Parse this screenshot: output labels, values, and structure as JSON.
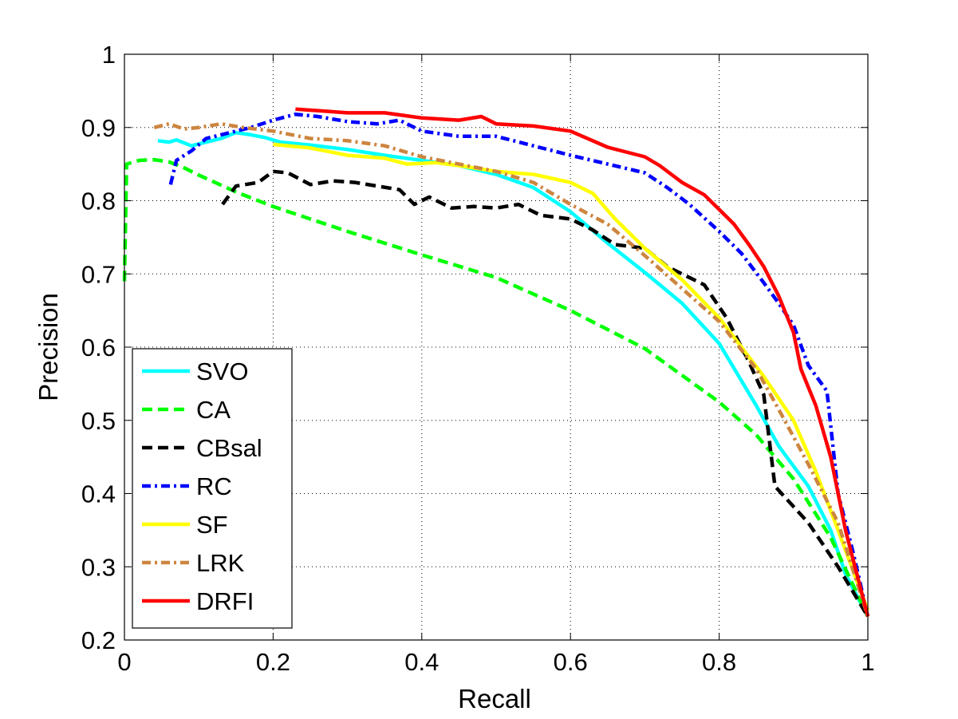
{
  "chart_data": {
    "type": "line",
    "title": "",
    "xlabel": "Recall",
    "ylabel": "Precision",
    "xlim": [
      0,
      1
    ],
    "ylim": [
      0.2,
      1
    ],
    "grid": true,
    "legend_position": "bottom-left",
    "x_ticks": [
      "0",
      "0.2",
      "0.4",
      "0.6",
      "0.8",
      "1"
    ],
    "y_ticks": [
      "0.2",
      "0.3",
      "0.4",
      "0.5",
      "0.6",
      "0.7",
      "0.8",
      "0.9",
      "1"
    ],
    "series": [
      {
        "name": "SVO",
        "color": "#00ffff",
        "style": "solid",
        "points": [
          [
            0.045,
            0.882
          ],
          [
            0.06,
            0.88
          ],
          [
            0.07,
            0.883
          ],
          [
            0.09,
            0.875
          ],
          [
            0.11,
            0.88
          ],
          [
            0.13,
            0.885
          ],
          [
            0.15,
            0.893
          ],
          [
            0.17,
            0.89
          ],
          [
            0.19,
            0.886
          ],
          [
            0.21,
            0.88
          ],
          [
            0.25,
            0.876
          ],
          [
            0.3,
            0.87
          ],
          [
            0.35,
            0.862
          ],
          [
            0.4,
            0.855
          ],
          [
            0.45,
            0.848
          ],
          [
            0.5,
            0.836
          ],
          [
            0.55,
            0.818
          ],
          [
            0.6,
            0.785
          ],
          [
            0.65,
            0.742
          ],
          [
            0.7,
            0.702
          ],
          [
            0.75,
            0.66
          ],
          [
            0.8,
            0.605
          ],
          [
            0.85,
            0.52
          ],
          [
            0.88,
            0.465
          ],
          [
            0.92,
            0.41
          ],
          [
            0.95,
            0.35
          ],
          [
            0.97,
            0.29
          ],
          [
            1.0,
            0.232
          ]
        ]
      },
      {
        "name": "CA",
        "color": "#00ff00",
        "style": "dashed",
        "points": [
          [
            0.0,
            0.69
          ],
          [
            0.003,
            0.85
          ],
          [
            0.02,
            0.855
          ],
          [
            0.04,
            0.856
          ],
          [
            0.06,
            0.853
          ],
          [
            0.08,
            0.845
          ],
          [
            0.1,
            0.835
          ],
          [
            0.15,
            0.812
          ],
          [
            0.2,
            0.792
          ],
          [
            0.3,
            0.758
          ],
          [
            0.4,
            0.726
          ],
          [
            0.5,
            0.695
          ],
          [
            0.6,
            0.65
          ],
          [
            0.7,
            0.598
          ],
          [
            0.8,
            0.525
          ],
          [
            0.85,
            0.48
          ],
          [
            0.9,
            0.42
          ],
          [
            0.95,
            0.34
          ],
          [
            1.0,
            0.232
          ]
        ]
      },
      {
        "name": "CBsal",
        "color": "#000000",
        "style": "dashed",
        "points": [
          [
            0.132,
            0.795
          ],
          [
            0.15,
            0.82
          ],
          [
            0.18,
            0.825
          ],
          [
            0.2,
            0.84
          ],
          [
            0.22,
            0.838
          ],
          [
            0.25,
            0.822
          ],
          [
            0.28,
            0.827
          ],
          [
            0.31,
            0.825
          ],
          [
            0.34,
            0.82
          ],
          [
            0.37,
            0.815
          ],
          [
            0.39,
            0.795
          ],
          [
            0.41,
            0.805
          ],
          [
            0.44,
            0.79
          ],
          [
            0.47,
            0.792
          ],
          [
            0.5,
            0.79
          ],
          [
            0.53,
            0.795
          ],
          [
            0.56,
            0.78
          ],
          [
            0.6,
            0.775
          ],
          [
            0.63,
            0.76
          ],
          [
            0.66,
            0.74
          ],
          [
            0.7,
            0.735
          ],
          [
            0.73,
            0.71
          ],
          [
            0.78,
            0.685
          ],
          [
            0.81,
            0.64
          ],
          [
            0.84,
            0.58
          ],
          [
            0.86,
            0.535
          ],
          [
            0.875,
            0.41
          ],
          [
            0.92,
            0.36
          ],
          [
            0.96,
            0.3
          ],
          [
            1.0,
            0.232
          ]
        ]
      },
      {
        "name": "RC",
        "color": "#0000ff",
        "style": "dashdot",
        "points": [
          [
            0.062,
            0.822
          ],
          [
            0.07,
            0.855
          ],
          [
            0.09,
            0.868
          ],
          [
            0.11,
            0.885
          ],
          [
            0.13,
            0.89
          ],
          [
            0.15,
            0.895
          ],
          [
            0.17,
            0.9
          ],
          [
            0.2,
            0.91
          ],
          [
            0.23,
            0.918
          ],
          [
            0.26,
            0.915
          ],
          [
            0.3,
            0.908
          ],
          [
            0.34,
            0.905
          ],
          [
            0.37,
            0.91
          ],
          [
            0.4,
            0.895
          ],
          [
            0.45,
            0.888
          ],
          [
            0.5,
            0.888
          ],
          [
            0.55,
            0.875
          ],
          [
            0.6,
            0.862
          ],
          [
            0.65,
            0.85
          ],
          [
            0.7,
            0.838
          ],
          [
            0.73,
            0.818
          ],
          [
            0.76,
            0.795
          ],
          [
            0.8,
            0.758
          ],
          [
            0.83,
            0.728
          ],
          [
            0.86,
            0.688
          ],
          [
            0.88,
            0.66
          ],
          [
            0.9,
            0.63
          ],
          [
            0.92,
            0.575
          ],
          [
            0.945,
            0.54
          ],
          [
            0.96,
            0.4
          ],
          [
            0.98,
            0.32
          ],
          [
            1.0,
            0.232
          ]
        ]
      },
      {
        "name": "SF",
        "color": "#ffff00",
        "style": "solid",
        "points": [
          [
            0.2,
            0.877
          ],
          [
            0.25,
            0.872
          ],
          [
            0.3,
            0.862
          ],
          [
            0.35,
            0.858
          ],
          [
            0.38,
            0.85
          ],
          [
            0.42,
            0.852
          ],
          [
            0.45,
            0.848
          ],
          [
            0.5,
            0.84
          ],
          [
            0.55,
            0.836
          ],
          [
            0.6,
            0.825
          ],
          [
            0.63,
            0.81
          ],
          [
            0.66,
            0.775
          ],
          [
            0.7,
            0.735
          ],
          [
            0.75,
            0.692
          ],
          [
            0.8,
            0.64
          ],
          [
            0.83,
            0.6
          ],
          [
            0.86,
            0.56
          ],
          [
            0.9,
            0.5
          ],
          [
            0.93,
            0.43
          ],
          [
            0.96,
            0.35
          ],
          [
            1.0,
            0.24
          ]
        ]
      },
      {
        "name": "LRK",
        "color": "#cd853f",
        "style": "dashdot",
        "points": [
          [
            0.04,
            0.9
          ],
          [
            0.06,
            0.905
          ],
          [
            0.08,
            0.898
          ],
          [
            0.1,
            0.9
          ],
          [
            0.13,
            0.905
          ],
          [
            0.16,
            0.9
          ],
          [
            0.2,
            0.895
          ],
          [
            0.25,
            0.885
          ],
          [
            0.3,
            0.882
          ],
          [
            0.35,
            0.875
          ],
          [
            0.4,
            0.86
          ],
          [
            0.45,
            0.85
          ],
          [
            0.5,
            0.84
          ],
          [
            0.55,
            0.825
          ],
          [
            0.6,
            0.795
          ],
          [
            0.65,
            0.768
          ],
          [
            0.7,
            0.725
          ],
          [
            0.75,
            0.68
          ],
          [
            0.8,
            0.635
          ],
          [
            0.85,
            0.57
          ],
          [
            0.88,
            0.515
          ],
          [
            0.92,
            0.44
          ],
          [
            0.96,
            0.36
          ],
          [
            1.0,
            0.232
          ]
        ]
      },
      {
        "name": "DRFI",
        "color": "#ff0000",
        "style": "solid",
        "points": [
          [
            0.23,
            0.925
          ],
          [
            0.26,
            0.923
          ],
          [
            0.3,
            0.92
          ],
          [
            0.35,
            0.92
          ],
          [
            0.4,
            0.913
          ],
          [
            0.45,
            0.91
          ],
          [
            0.48,
            0.915
          ],
          [
            0.5,
            0.905
          ],
          [
            0.55,
            0.902
          ],
          [
            0.6,
            0.895
          ],
          [
            0.65,
            0.873
          ],
          [
            0.7,
            0.86
          ],
          [
            0.72,
            0.848
          ],
          [
            0.75,
            0.825
          ],
          [
            0.78,
            0.808
          ],
          [
            0.8,
            0.788
          ],
          [
            0.82,
            0.768
          ],
          [
            0.84,
            0.74
          ],
          [
            0.86,
            0.71
          ],
          [
            0.88,
            0.67
          ],
          [
            0.9,
            0.62
          ],
          [
            0.91,
            0.57
          ],
          [
            0.93,
            0.52
          ],
          [
            0.95,
            0.45
          ],
          [
            0.97,
            0.35
          ],
          [
            1.0,
            0.232
          ]
        ]
      }
    ]
  }
}
